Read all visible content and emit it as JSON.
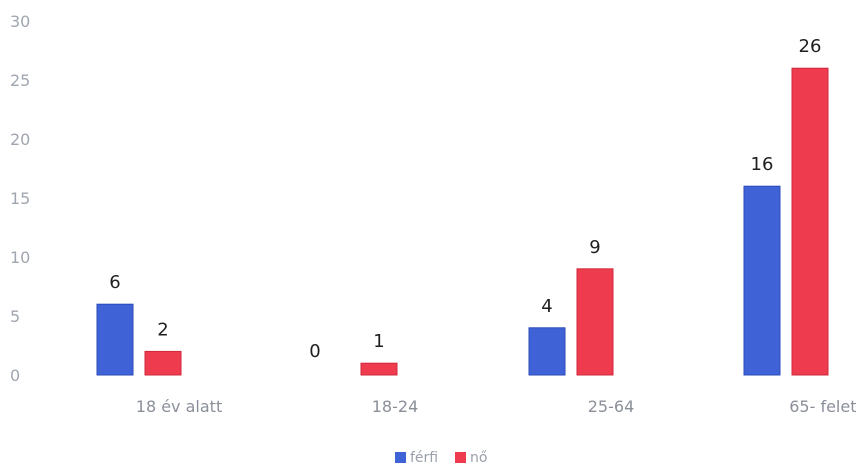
{
  "chart_data": {
    "type": "bar",
    "categories": [
      "18 év alatt",
      "18-24",
      "25-64",
      "65- felett"
    ],
    "series": [
      {
        "name": "férfi",
        "values": [
          6,
          0,
          4,
          16
        ],
        "color": "#3f63d6"
      },
      {
        "name": "nő",
        "values": [
          2,
          1,
          9,
          26
        ],
        "color": "#ee3b4e"
      }
    ],
    "y_ticks": [
      "0",
      "5",
      "10",
      "15",
      "20",
      "25",
      "30"
    ],
    "ylim": [
      0,
      30
    ],
    "grid": false,
    "legend_position": "bottom-center",
    "title": "",
    "xlabel": "",
    "ylabel": ""
  }
}
